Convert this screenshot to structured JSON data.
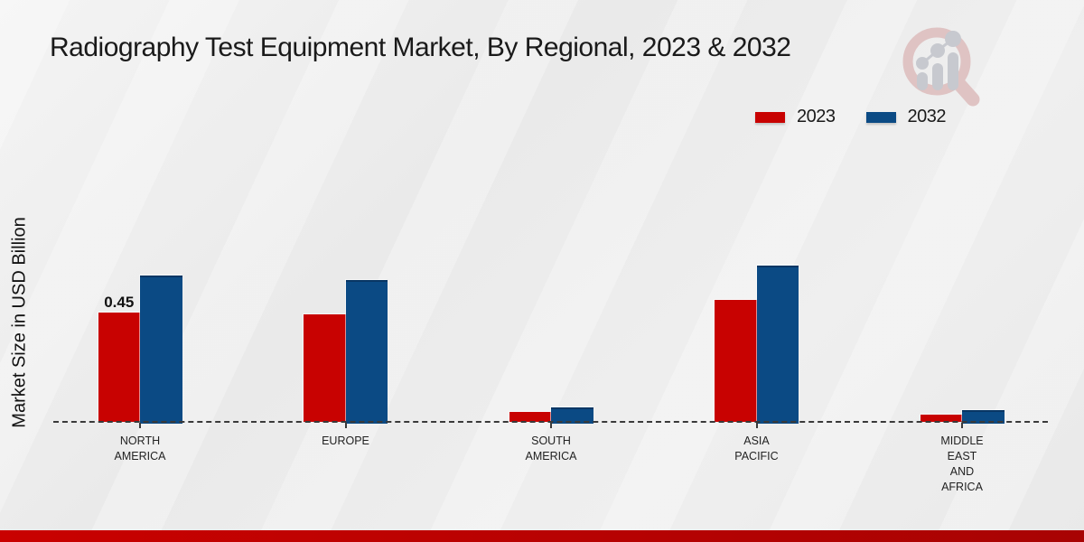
{
  "title": "Radiography Test Equipment Market, By Regional, 2023 & 2032",
  "y_axis_label": "Market Size in USD Billion",
  "legend": {
    "items": [
      {
        "label": "2023",
        "color": "#c80201"
      },
      {
        "label": "2032",
        "color": "#0b4a84"
      }
    ]
  },
  "branding": {
    "logo_icon": "magnifier-growth-chart-icon"
  },
  "colors": {
    "background": "#ededed",
    "baseline": "#3a3a3a",
    "title_text": "#1a1a1a",
    "axis_text": "#222222",
    "bar_2023": "#c80201",
    "bar_2032": "#0b4a84",
    "bottom_bar_left": "#c90100",
    "bottom_bar_right": "#a80303",
    "logo_pink": "#dfc3c3",
    "logo_gray": "#c7c9cf"
  },
  "chart_data": {
    "type": "bar",
    "title": "Radiography Test Equipment Market, By Regional, 2023 & 2032",
    "xlabel": "",
    "ylabel": "Market Size in USD Billion",
    "units": "USD Billion",
    "ylim": [
      0,
      0.7
    ],
    "grid": false,
    "legend_position": "top-right",
    "baseline": "dashed",
    "categories": [
      "NORTH AMERICA",
      "EUROPE",
      "SOUTH AMERICA",
      "ASIA PACIFIC",
      "MIDDLE EAST AND AFRICA"
    ],
    "category_label_lines": [
      [
        "NORTH",
        "AMERICA"
      ],
      [
        "EUROPE"
      ],
      [
        "SOUTH",
        "AMERICA"
      ],
      [
        "ASIA",
        "PACIFIC"
      ],
      [
        "MIDDLE",
        "EAST",
        "AND",
        "AFRICA"
      ]
    ],
    "series": [
      {
        "name": "2023",
        "color": "#c80201",
        "values": [
          0.45,
          0.44,
          0.04,
          0.5,
          0.03
        ]
      },
      {
        "name": "2032",
        "color": "#0b4a84",
        "values": [
          0.6,
          0.58,
          0.06,
          0.64,
          0.05
        ]
      }
    ],
    "annotations": [
      {
        "series": "2023",
        "category": "NORTH AMERICA",
        "text": "0.45"
      }
    ]
  }
}
